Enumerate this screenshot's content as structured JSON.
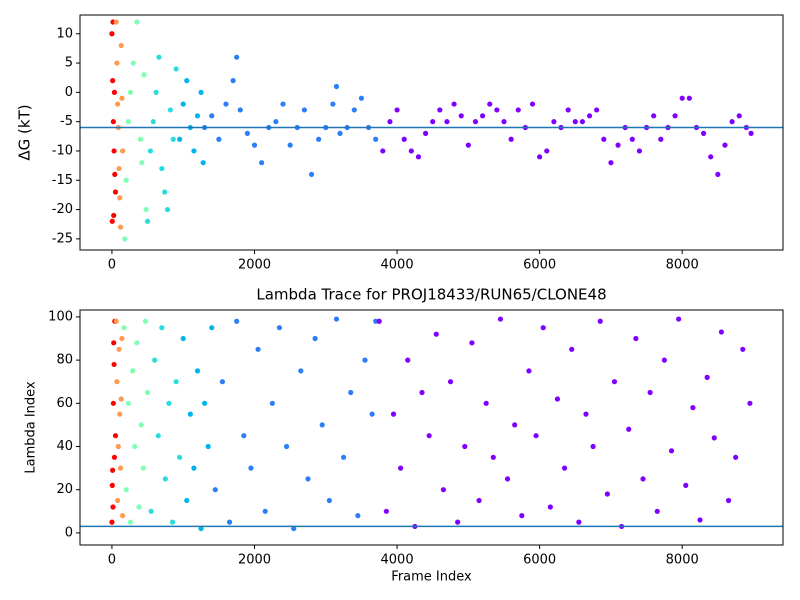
{
  "chart_data": [
    {
      "type": "scatter",
      "ylabel": "ΔG (kT)",
      "xlim": [
        -448,
        9414
      ],
      "ylim": [
        -26.9,
        13.2
      ],
      "xticks": [
        0,
        2000,
        4000,
        6000,
        8000
      ],
      "yticks": [
        -25,
        -20,
        -15,
        -10,
        -5,
        0,
        5,
        10
      ],
      "hline": -6,
      "hline_color": "#1f77b4",
      "series": [
        {
          "color": "#ff0000",
          "x": [
            0,
            10,
            20,
            30,
            40,
            50,
            5,
            15,
            25,
            35
          ],
          "values": [
            10,
            2,
            -5,
            -10,
            -14,
            -17,
            -22,
            12,
            -21,
            0
          ]
        },
        {
          "color": "#ff9a50",
          "x": [
            60,
            70,
            80,
            90,
            100,
            110,
            120,
            130,
            140,
            150
          ],
          "values": [
            12,
            5,
            -2,
            -6,
            -13,
            -18,
            -23,
            8,
            -1,
            -10
          ]
        },
        {
          "color": "#80ffb4",
          "x": [
            180,
            200,
            230,
            260,
            300,
            350,
            400,
            450,
            480,
            420
          ],
          "values": [
            -25,
            -15,
            -5,
            0,
            5,
            12,
            -8,
            3,
            -20,
            -12
          ]
        },
        {
          "color": "#2adddd",
          "x": [
            500,
            540,
            580,
            620,
            660,
            700,
            740,
            780,
            820,
            860,
            900
          ],
          "values": [
            -22,
            -10,
            -5,
            0,
            6,
            -13,
            -17,
            -20,
            -3,
            -8,
            4
          ]
        },
        {
          "color": "#00b5eb",
          "x": [
            950,
            1000,
            1050,
            1100,
            1150,
            1200,
            1250,
            1280
          ],
          "values": [
            -8,
            -2,
            2,
            -6,
            -10,
            -4,
            0,
            -12
          ]
        },
        {
          "color": "#2c7ef7",
          "x": [
            1300,
            1400,
            1500,
            1600,
            1700,
            1750,
            1800,
            1900,
            2000,
            2100,
            2200,
            2300,
            2400,
            2500,
            2600,
            2700,
            2800,
            2900,
            3000,
            3100,
            3150,
            3200,
            3300,
            3400,
            3500,
            3600,
            3700
          ],
          "values": [
            -6,
            -4,
            -8,
            -2,
            2,
            6,
            -3,
            -7,
            -9,
            -12,
            -6,
            -5,
            -2,
            -9,
            -6,
            -3,
            -14,
            -8,
            -6,
            -2,
            1,
            -7,
            -6,
            -3,
            -1,
            -6,
            -8
          ]
        },
        {
          "color": "#8000ff",
          "x": [
            3800,
            3900,
            4000,
            4100,
            4200,
            4300,
            4400,
            4500,
            4600,
            4700,
            4800,
            4900,
            5000,
            5100,
            5200,
            5300,
            5400,
            5500,
            5600,
            5700,
            5800,
            5900,
            6000,
            6100,
            6200,
            6300,
            6400,
            6500,
            6600,
            6700,
            6800,
            6900,
            7000,
            7100,
            7200,
            7300,
            7400,
            7500,
            7600,
            7700,
            7800,
            7900,
            8000,
            8100,
            8200,
            8300,
            8400,
            8500,
            8600,
            8700,
            8800,
            8900,
            8966
          ],
          "values": [
            -10,
            -5,
            -3,
            -8,
            -10,
            -11,
            -7,
            -5,
            -3,
            -5,
            -2,
            -4,
            -9,
            -5,
            -4,
            -2,
            -3,
            -5,
            -8,
            -3,
            -6,
            -2,
            -11,
            -10,
            -5,
            -6,
            -3,
            -5,
            -5,
            -4,
            -3,
            -8,
            -12,
            -9,
            -6,
            -8,
            -10,
            -6,
            -4,
            -8,
            -6,
            -4,
            -1,
            -1,
            -6,
            -7,
            -11,
            -14,
            -9,
            -5,
            -4,
            -6,
            -7
          ]
        }
      ]
    },
    {
      "type": "scatter",
      "title": "Lambda Trace for PROJ18433/RUN65/CLONE48",
      "xlabel": "Frame Index",
      "ylabel": "Lambda Index",
      "xlim": [
        -448,
        9414
      ],
      "ylim": [
        -5.6,
        103.2
      ],
      "xticks": [
        0,
        2000,
        4000,
        6000,
        8000
      ],
      "yticks": [
        0,
        20,
        40,
        60,
        80,
        100
      ],
      "hline": 3,
      "hline_color": "#1f77b4",
      "series": [
        {
          "color": "#ff0000",
          "x": [
            0,
            10,
            20,
            30,
            40,
            50,
            5,
            15,
            25,
            35
          ],
          "values": [
            5,
            29,
            60,
            78,
            98,
            45,
            22,
            12,
            88,
            35
          ]
        },
        {
          "color": "#ff9a50",
          "x": [
            60,
            70,
            80,
            90,
            100,
            110,
            120,
            130,
            140,
            150
          ],
          "values": [
            98,
            70,
            15,
            40,
            85,
            55,
            30,
            62,
            90,
            8
          ]
        },
        {
          "color": "#80ffb4",
          "x": [
            170,
            200,
            230,
            260,
            290,
            320,
            350,
            380,
            410,
            440,
            470,
            500
          ],
          "values": [
            95,
            20,
            60,
            5,
            75,
            40,
            88,
            12,
            50,
            30,
            98,
            65
          ]
        },
        {
          "color": "#2adddd",
          "x": [
            550,
            600,
            650,
            700,
            750,
            800,
            850,
            900,
            950
          ],
          "values": [
            10,
            80,
            45,
            95,
            25,
            60,
            5,
            70,
            35
          ]
        },
        {
          "color": "#00b5eb",
          "x": [
            1000,
            1050,
            1100,
            1150,
            1200,
            1250,
            1300,
            1350,
            1400
          ],
          "values": [
            90,
            15,
            55,
            30,
            75,
            2,
            60,
            40,
            95
          ]
        },
        {
          "color": "#2c7ef7",
          "x": [
            1450,
            1550,
            1650,
            1750,
            1850,
            1950,
            2050,
            2150,
            2250,
            2350,
            2450,
            2550,
            2650,
            2750,
            2850,
            2950,
            3050,
            3150,
            3250,
            3350,
            3450,
            3550,
            3650,
            3700
          ],
          "values": [
            20,
            70,
            5,
            98,
            45,
            30,
            85,
            10,
            60,
            95,
            40,
            2,
            75,
            25,
            90,
            50,
            15,
            99,
            35,
            65,
            8,
            80,
            55,
            98
          ]
        },
        {
          "color": "#8000ff",
          "x": [
            3750,
            3850,
            3950,
            4050,
            4150,
            4250,
            4350,
            4450,
            4550,
            4650,
            4750,
            4850,
            4950,
            5050,
            5150,
            5250,
            5350,
            5450,
            5550,
            5650,
            5750,
            5850,
            5950,
            6050,
            6150,
            6250,
            6350,
            6450,
            6550,
            6650,
            6750,
            6850,
            6950,
            7050,
            7150,
            7250,
            7350,
            7450,
            7550,
            7650,
            7750,
            7850,
            7950,
            8050,
            8150,
            8250,
            8350,
            8450,
            8550,
            8650,
            8750,
            8850,
            8950
          ],
          "values": [
            98,
            10,
            55,
            30,
            80,
            3,
            65,
            45,
            92,
            20,
            70,
            5,
            40,
            88,
            15,
            60,
            35,
            99,
            25,
            50,
            8,
            75,
            45,
            95,
            12,
            62,
            30,
            85,
            5,
            55,
            40,
            98,
            18,
            70,
            3,
            48,
            90,
            25,
            65,
            10,
            80,
            38,
            99,
            22,
            58,
            6,
            72,
            44,
            93,
            15,
            35,
            85,
            60
          ]
        }
      ]
    }
  ]
}
